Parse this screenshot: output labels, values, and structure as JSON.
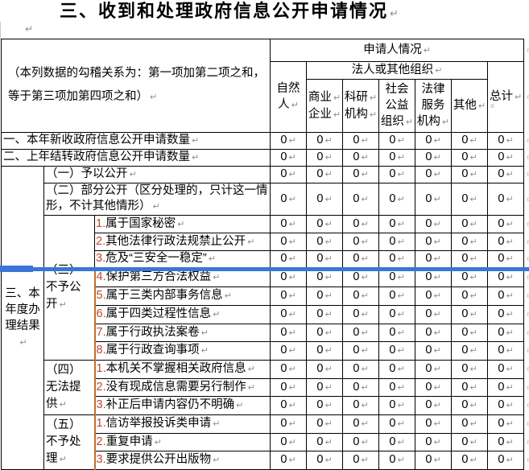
{
  "page": {
    "title": "三、收到和处理政府信息公开申请情况"
  },
  "marks": {
    "pilcrow": "↵",
    "row_end": "¤"
  },
  "colors": {
    "item_number": "#c5452c",
    "page_break_line": "#3a76d8",
    "changed_border": "#c2702e",
    "table_border": "#000000"
  },
  "table": {
    "zero": "0",
    "rows": [
      {
        "cells": [
          {
            "name": "instruction-note",
            "cls": "instr",
            "cs": 3,
            "rs": 3,
            "label": "（本列数据的勾稽关系为：第一项加第二项之和，等于第三项加第四项之和）"
          },
          {
            "name": "header-applicant-info",
            "cls": "hc",
            "cs": 7,
            "label": "申请人情况"
          }
        ]
      },
      {
        "cells": [
          {
            "name": "header-natural-person",
            "cls": "hc",
            "rs": 2,
            "lines": [
              "自然",
              "人"
            ]
          },
          {
            "name": "header-legal-or-other-org",
            "cls": "hc",
            "cs": 5,
            "label": "法人或其他组织"
          },
          {
            "name": "header-total",
            "cls": "hc",
            "rs": 2,
            "label": "总计"
          }
        ]
      },
      {
        "cells": [
          {
            "name": "header-commercial-enterprise",
            "cls": "hc",
            "lines": [
              "商业",
              "企业"
            ],
            "all_marks": true
          },
          {
            "name": "header-research-institution",
            "cls": "hc",
            "lines": [
              "科研",
              "机构"
            ],
            "all_marks": true
          },
          {
            "name": "header-social-welfare-org",
            "cls": "hc",
            "lines": [
              "社会",
              "公益",
              "组织"
            ]
          },
          {
            "name": "header-legal-service-org",
            "cls": "hc",
            "lines": [
              "法律",
              "服务",
              "机构"
            ]
          },
          {
            "name": "header-other",
            "cls": "hc",
            "label": "其他"
          }
        ]
      },
      {
        "zeros": 7,
        "cells": [
          {
            "name": "row-label-new-applications",
            "cls": "lab",
            "cs": 3,
            "label": "一、本年新收政府信息公开申请数量"
          }
        ]
      },
      {
        "zeros": 7,
        "cells": [
          {
            "name": "row-label-carried-over",
            "cls": "lab",
            "cs": 3,
            "label": "二、上年结转政府信息公开申请数量"
          }
        ]
      },
      {
        "zeros": 7,
        "cells": [
          {
            "name": "row-label-annual-results",
            "cls": "hc",
            "rs": 16,
            "lines": [
              "三、本",
              "年度办",
              "理结果"
            ]
          },
          {
            "name": "row-label-granted-disclosure",
            "cls": "lab",
            "cs": 2,
            "label": "（一）予以公开"
          }
        ]
      },
      {
        "zeros": 7,
        "cells": [
          {
            "name": "row-label-partial-disclosure",
            "cls": "lab",
            "cs": 2,
            "label": "（二）部分公开（区分处理的，只计这一情形，不计其他情形）"
          }
        ]
      },
      {
        "zeros": 7,
        "cells": [
          {
            "name": "row-label-denied-disclosure",
            "cls": "grp",
            "rs": 8,
            "label": "（三）不予公开"
          },
          {
            "name": "item-state-secret",
            "cls": "item",
            "num": "1.",
            "label": "属于国家秘密"
          }
        ]
      },
      {
        "zeros": 7,
        "cells": [
          {
            "name": "item-prohibited-by-law",
            "cls": "item",
            "num": "2.",
            "label": "其他法律行政法规禁止公开"
          }
        ]
      },
      {
        "zeros": 7,
        "cells": [
          {
            "name": "item-endanger-safety",
            "cls": "item",
            "num": "3.",
            "label": "危及“三安全一稳定”"
          }
        ]
      },
      {
        "zeros": 7,
        "orange_top": true,
        "cells": [
          {
            "name": "item-third-party-rights",
            "cls": "item ol",
            "num": "4.",
            "label": "保护第三方合法权益"
          }
        ]
      },
      {
        "zeros": 7,
        "cells": [
          {
            "name": "item-internal-affairs",
            "cls": "item ol",
            "num": "5.",
            "label": "属于三类内部事务信息"
          }
        ]
      },
      {
        "zeros": 7,
        "cells": [
          {
            "name": "item-process-info",
            "cls": "item ol",
            "num": "6.",
            "label": "属于四类过程性信息"
          }
        ]
      },
      {
        "zeros": 7,
        "cells": [
          {
            "name": "item-enforcement-files",
            "cls": "item ol",
            "num": "7.",
            "label": "属于行政执法案卷"
          }
        ]
      },
      {
        "zeros": 7,
        "cells": [
          {
            "name": "item-admin-inquiry",
            "cls": "item ol",
            "num": "8.",
            "label": "属于行政查询事项"
          }
        ]
      },
      {
        "zeros": 7,
        "cells": [
          {
            "name": "row-label-unable-to-provide",
            "cls": "grp",
            "rs": 3,
            "label": "（四）无法提供"
          },
          {
            "name": "item-not-held",
            "cls": "item ol",
            "num": "1.",
            "label": "本机关不掌握相关政府信息"
          }
        ]
      },
      {
        "zeros": 7,
        "cells": [
          {
            "name": "item-needs-creation",
            "cls": "item ol",
            "num": "2.",
            "label": "没有现成信息需要另行制作"
          }
        ]
      },
      {
        "zeros": 7,
        "cells": [
          {
            "name": "item-still-unclear",
            "cls": "item ol",
            "num": "3.",
            "label": "补正后申请内容仍不明确"
          }
        ]
      },
      {
        "zeros": 7,
        "cells": [
          {
            "name": "row-label-not-processed",
            "cls": "grp",
            "rs": 3,
            "label": "（五）不予处理"
          },
          {
            "name": "item-petition-complaint",
            "cls": "item ol",
            "num": "1.",
            "label": "信访举报投诉类申请"
          }
        ]
      },
      {
        "zeros": 7,
        "cells": [
          {
            "name": "item-repeated-application",
            "cls": "item ol",
            "num": "2.",
            "label": "重复申请"
          }
        ]
      },
      {
        "zeros": 7,
        "cells": [
          {
            "name": "item-published-materials",
            "cls": "item ol",
            "num": "3.",
            "label": "要求提供公开出版物"
          }
        ]
      }
    ]
  }
}
